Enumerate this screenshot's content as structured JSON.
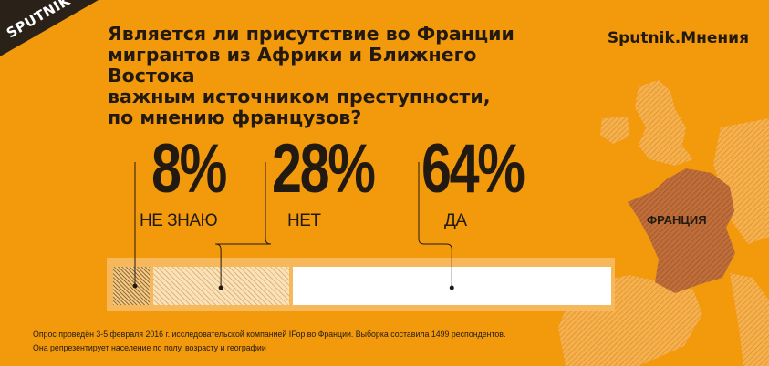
{
  "header": {
    "logo_text": "SPUTNIK",
    "question_lines": [
      "Является ли присутствие во Франции",
      "мигрантов из Африки и Ближнего Востока",
      "важным источником преступности,",
      "по мнению французов?"
    ],
    "brand": "Sputnik.Мнения"
  },
  "map": {
    "label": "ФРАНЦИЯ"
  },
  "chart_data": {
    "type": "bar",
    "orientation": "horizontal-stacked",
    "categories": [
      "НЕ ЗНАЮ",
      "НЕТ",
      "ДА"
    ],
    "values": [
      8,
      28,
      64
    ],
    "value_labels": [
      "8%",
      "28%",
      "64%"
    ],
    "unit": "%",
    "colors": [
      "#f7c982",
      "#fbe2b8",
      "#ffffff"
    ],
    "title": "Является ли присутствие во Франции мигрантов из Африки и Ближнего Востока важным источником преступности, по мнению французов?",
    "xlabel": "",
    "ylabel": "",
    "xlim": [
      0,
      100
    ],
    "grid": false,
    "legend": "none"
  },
  "footnote": {
    "line1": "Опрос проведён 3-5 февраля 2016 г. исследовательской компанией IFop во Франции. Выборка составила 1499 респондентов.",
    "line2": "Она репрезентирует население по полу, возрасту и географии"
  },
  "colors": {
    "background": "#f39a0c",
    "text": "#221a10",
    "france": "#bf6e3a"
  }
}
